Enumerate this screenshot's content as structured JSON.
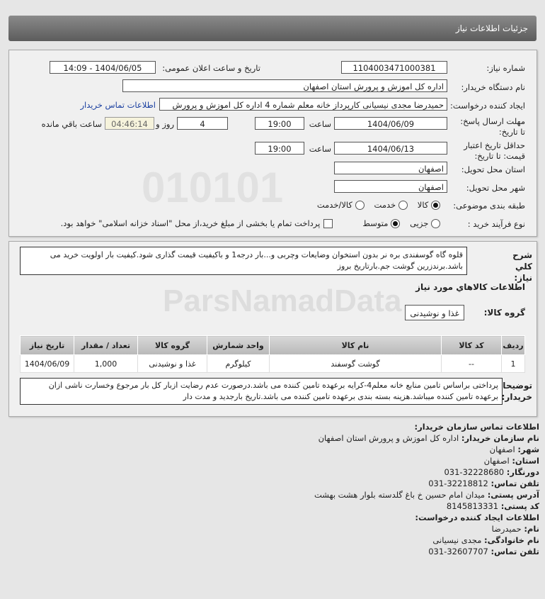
{
  "header": {
    "title": "جزئیات اطلاعات نیاز"
  },
  "form": {
    "need_number_label": "شماره نیاز:",
    "need_number": "1104003471000381",
    "announce_label": "تاریخ و ساعت اعلان عمومی:",
    "announce_value": "1404/06/05 - 14:09",
    "buyer_label": "نام دستگاه خریدار:",
    "buyer_value": "اداره کل اموزش و پرورش استان اصفهان",
    "creator_label": "ایجاد کننده درخواست:",
    "creator_value": "حمیدرضا مجدی نیسیانی کارپرداز خانه معلم شماره 4 اداره کل اموزش و پرورش",
    "contact_link": "اطلاعات تماس خریدار",
    "deadline_label": "مهلت ارسال پاسخ: تا تاریخ:",
    "deadline_date": "1404/06/09",
    "time_label": "ساعت",
    "deadline_time": "19:00",
    "days": "4",
    "days_label": "روز و",
    "remaining": "04:46:14",
    "remaining_label": "ساعت باقي مانده",
    "validity_label": "حداقل تاریخ اعتبار قیمت: تا تاریخ:",
    "validity_date": "1404/06/13",
    "validity_time": "19:00",
    "province_label": "استان محل تحویل:",
    "province": "اصفهان",
    "city_label": "شهر محل تحویل:",
    "city": "اصفهان",
    "category_label": "طبقه بندی موضوعی:",
    "category_options": [
      "کالا",
      "خدمت",
      "کالا/خدمت"
    ],
    "category_selected": "کالا",
    "process_label": "نوع فرآیند خرید :",
    "process_options": [
      "جزیی",
      "متوسط"
    ],
    "process_selected": "متوسط",
    "payment_note": "پرداخت تمام یا بخشی از مبلغ خرید،از محل \"اسناد خزانه اسلامی\" خواهد بود."
  },
  "need": {
    "desc_label": "شرح کلي نیاز:",
    "desc": "قلوه گاه گوسفندی بره نر بدون استخوان وضایعات وچربی و...بار درجه1 و باکیفیت قیمت گذاری شود.کیفیت بار اولویت خرید می باشد.برندزرین گوشت جم.بارتاریخ بروز",
    "goods_title": "اطلاعات کالاهاي مورد نیاز",
    "group_label": "گروه کالا:",
    "group_value": "غذا و نوشیدنی",
    "columns": [
      "ردیف",
      "کد کالا",
      "نام کالا",
      "واحد شمارش",
      "گروه کالا",
      "تعداد / مقدار",
      "تاریخ نیاز"
    ],
    "rows": [
      [
        "1",
        "--",
        "گوشت گوسفند",
        "کیلوگرم",
        "غذا و نوشیدنی",
        "1,000",
        "1404/06/09"
      ]
    ],
    "notes_label": "توضیحات خریدار:",
    "notes": "پرداختی براساس تامین منابع خانه معلم4-کرایه برعهده تامین کننده می باشد.درصورت عدم رضایت ازبار کل بار مرجوع وخسارت ناشی ازان برعهده تامین کننده میباشد.هزینه بسته بندی برعهده تامین کننده می باشد.تاریخ بارجدید و مدت دار"
  },
  "contact": {
    "title": "اطلاعات تماس سازمان خریدار:",
    "items": [
      {
        "label": "نام سازمان خریدار:",
        "value": "اداره کل اموزش و پرورش استان اصفهان"
      },
      {
        "label": "شهر:",
        "value": "اصفهان"
      },
      {
        "label": "استان:",
        "value": "اصفهان"
      },
      {
        "label": "دورنگار:",
        "value": "031-32228680"
      },
      {
        "label": "تلفن تماس:",
        "value": "031-32218812"
      },
      {
        "label": "آدرس پستی:",
        "value": "میدان امام حسین خ باغ گلدسته بلوار هشت بهشت"
      },
      {
        "label": "کد پستی:",
        "value": "8145813331"
      }
    ],
    "creator_title": "اطلاعات ایجاد کننده درخواست:",
    "creator_items": [
      {
        "label": "نام:",
        "value": "حمیدرضا"
      },
      {
        "label": "نام خانوادگی:",
        "value": "مجدی نیسیانی"
      },
      {
        "label": "تلفن تماس:",
        "value": "031-32607707"
      }
    ]
  },
  "watermark": "ParsNamadData"
}
